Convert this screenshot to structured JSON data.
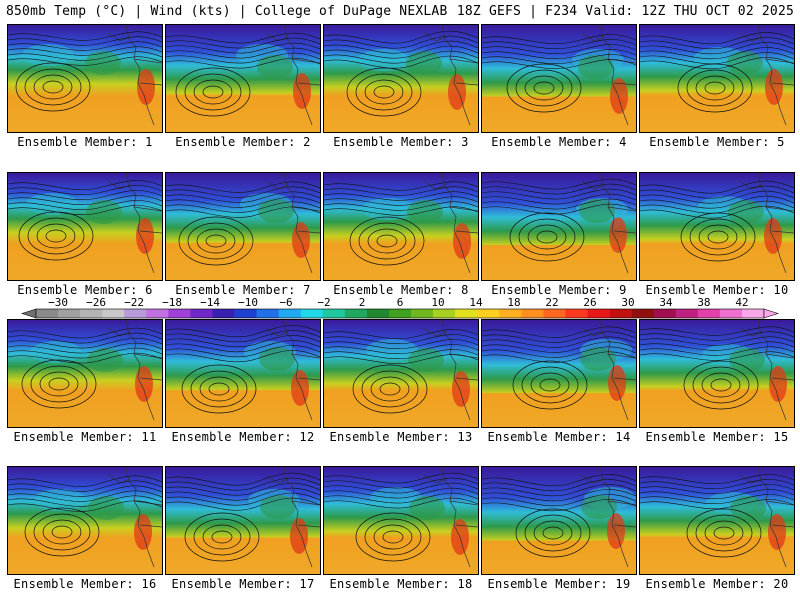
{
  "header": {
    "left": "850mb Temp (°C) | Wind (kts) | College of DuPage NEXLAB",
    "right": "18Z GEFS | F234 Valid: 12Z THU OCT 02 2025"
  },
  "panels": [
    {
      "label": "Ensemble Member: 1"
    },
    {
      "label": "Ensemble Member: 2"
    },
    {
      "label": "Ensemble Member: 3"
    },
    {
      "label": "Ensemble Member: 4"
    },
    {
      "label": "Ensemble Member: 5"
    },
    {
      "label": "Ensemble Member: 6"
    },
    {
      "label": "Ensemble Member: 7"
    },
    {
      "label": "Ensemble Member: 8"
    },
    {
      "label": "Ensemble Member: 9"
    },
    {
      "label": "Ensemble Member: 10"
    },
    {
      "label": "Ensemble Member: 11"
    },
    {
      "label": "Ensemble Member: 12"
    },
    {
      "label": "Ensemble Member: 13"
    },
    {
      "label": "Ensemble Member: 14"
    },
    {
      "label": "Ensemble Member: 15"
    },
    {
      "label": "Ensemble Member: 16"
    },
    {
      "label": "Ensemble Member: 17"
    },
    {
      "label": "Ensemble Member: 18"
    },
    {
      "label": "Ensemble Member: 19"
    },
    {
      "label": "Ensemble Member: 20"
    }
  ],
  "colorbar": {
    "ticks": [
      "-30",
      "-26",
      "-22",
      "-18",
      "-14",
      "-10",
      "-6",
      "-2",
      "2",
      "6",
      "10",
      "14",
      "18",
      "22",
      "26",
      "30",
      "34",
      "38",
      "42"
    ],
    "colors": [
      "#8a8a8a",
      "#a0a0a0",
      "#b4b4b4",
      "#c8c8c8",
      "#b89ad8",
      "#c070e0",
      "#a040d8",
      "#7028c8",
      "#3820b0",
      "#2040d0",
      "#2070e8",
      "#20a8f0",
      "#20d8e8",
      "#20c8a0",
      "#20a860",
      "#208830",
      "#40a020",
      "#70b820",
      "#a8d020",
      "#e0e020",
      "#ffd020",
      "#ffb020",
      "#ff9020",
      "#ff6820",
      "#ff3820",
      "#e81818",
      "#c01010",
      "#901010",
      "#a01050",
      "#c02080",
      "#e040a8",
      "#f070d0",
      "#f8a8e8"
    ]
  },
  "fields": {
    "cold_color": "#3a1a9a",
    "cool_color": "#2fbcd8",
    "mid_color": "#2e9a4a",
    "warm_color": "#f0a020",
    "hot_color": "#e03a18",
    "contour_color": "#111111",
    "border_color": "#333333"
  }
}
